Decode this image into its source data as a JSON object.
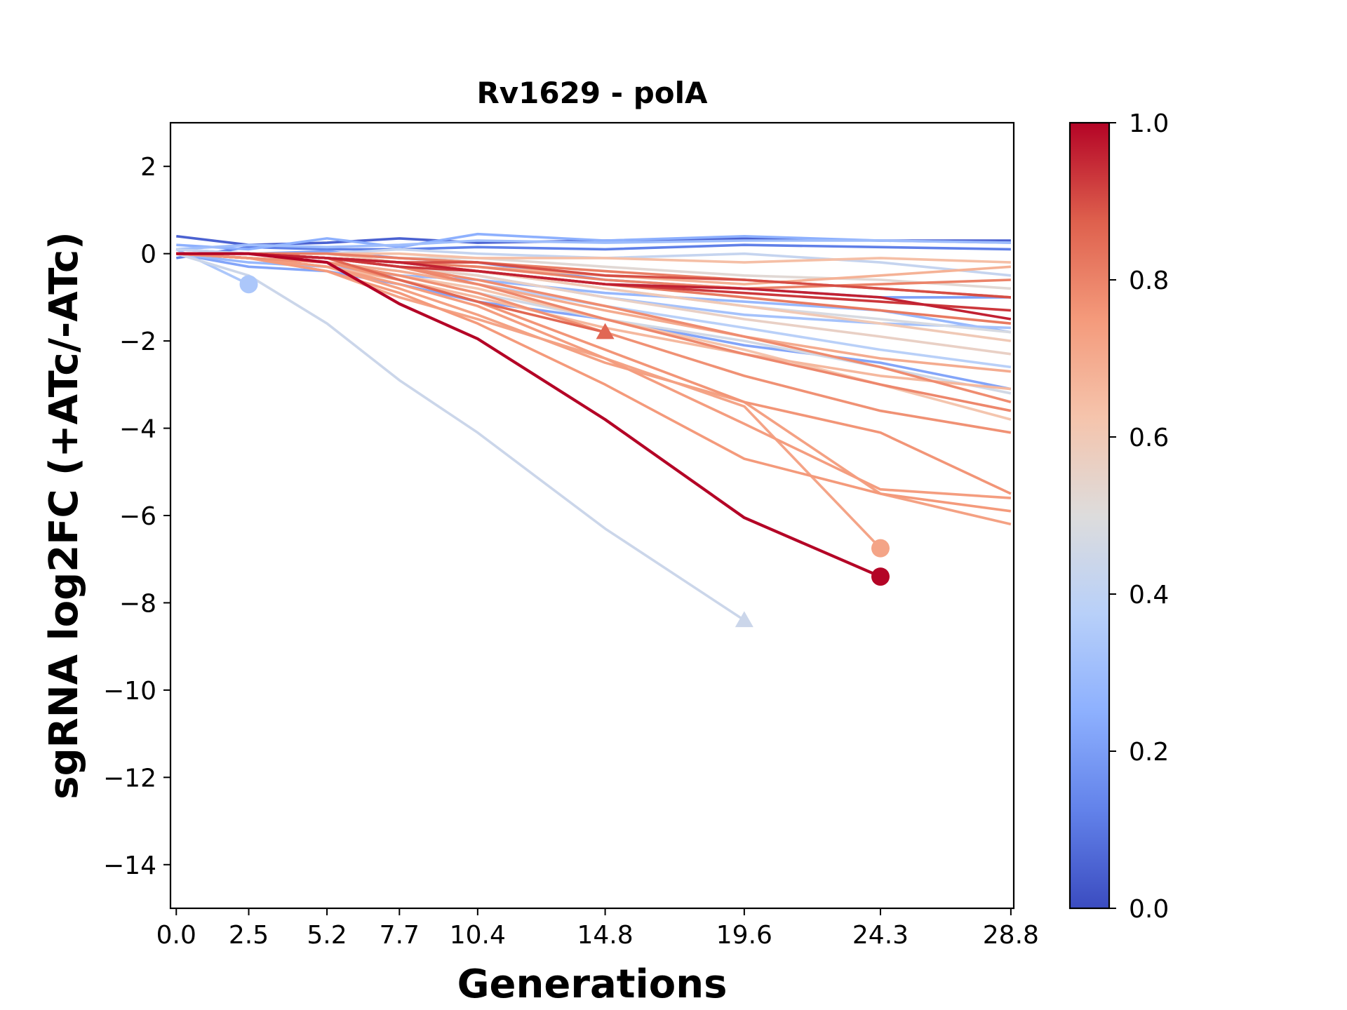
{
  "chart_data": {
    "type": "line",
    "title": "Rv1629 - polA",
    "xlabel": "Generations",
    "ylabel": "sgRNA log2FC (+ATc/-ATc)",
    "x_ticks": [
      0.0,
      2.5,
      5.2,
      7.7,
      10.4,
      14.8,
      19.6,
      24.3,
      28.8
    ],
    "x_tick_labels": [
      "0.0",
      "2.5",
      "5.2",
      "7.7",
      "10.4",
      "14.8",
      "19.6",
      "24.3",
      "28.8"
    ],
    "xlim": [
      -0.2,
      28.9
    ],
    "ylim": [
      -15,
      3
    ],
    "y_ticks": [
      2,
      0,
      -2,
      -4,
      -6,
      -8,
      -10,
      -12,
      -14
    ],
    "y_tick_labels": [
      "2",
      "0",
      "−2",
      "−4",
      "−6",
      "−8",
      "−10",
      "−12",
      "−14"
    ],
    "colorbar": {
      "colormap": "coolwarm",
      "range": [
        0.0,
        1.0
      ],
      "ticks": [
        0.0,
        0.2,
        0.4,
        0.6,
        0.8,
        1.0
      ],
      "tick_labels": [
        "0.0",
        "0.2",
        "0.4",
        "0.6",
        "0.8",
        "1.0"
      ],
      "stops": [
        "#3b4cc0",
        "#6282ea",
        "#8db0fe",
        "#b8d0f9",
        "#dddcdc",
        "#f5c4ac",
        "#f49a7b",
        "#de604d",
        "#b40426"
      ]
    },
    "series": [
      {
        "c": 0.05,
        "x": [
          0,
          2.5,
          5.2,
          7.7,
          10.4,
          14.8,
          19.6,
          24.3,
          28.8
        ],
        "y": [
          0.4,
          0.2,
          0.25,
          0.35,
          0.25,
          0.3,
          0.35,
          0.3,
          0.3
        ]
      },
      {
        "c": 0.12,
        "x": [
          0,
          2.5,
          5.2,
          7.7,
          10.4,
          14.8,
          19.6,
          24.3,
          28.8
        ],
        "y": [
          -0.1,
          0.15,
          0.1,
          0.1,
          0.15,
          0.1,
          0.2,
          0.15,
          0.1
        ]
      },
      {
        "c": 0.2,
        "x": [
          0,
          2.5,
          5.2,
          7.7,
          10.4,
          14.8,
          19.6,
          24.3,
          28.8
        ],
        "y": [
          0.1,
          0.0,
          0.05,
          -0.1,
          -0.2,
          -0.6,
          -0.8,
          -1.0,
          -1.0
        ]
      },
      {
        "c": 0.22,
        "x": [
          0,
          2.5,
          5.2,
          7.7,
          10.4,
          14.8,
          19.6,
          24.3,
          28.8
        ],
        "y": [
          0.0,
          -0.3,
          -0.4,
          -0.7,
          -1.1,
          -1.5,
          -2.1,
          -2.5,
          -3.1
        ]
      },
      {
        "c": 0.25,
        "x": [
          0,
          2.5,
          5.2,
          7.7,
          10.4,
          14.8,
          19.6,
          24.3,
          28.8
        ],
        "y": [
          0.2,
          0.1,
          0.35,
          0.15,
          0.45,
          0.3,
          0.4,
          0.3,
          0.25
        ]
      },
      {
        "c": 0.28,
        "x": [
          0,
          2.5,
          5.2,
          7.7,
          10.4,
          14.8,
          19.6,
          24.3,
          28.8
        ],
        "y": [
          0.0,
          -0.2,
          -0.3,
          -0.5,
          -0.6,
          -0.9,
          -1.1,
          -1.3,
          -1.8
        ]
      },
      {
        "c": 0.3,
        "x": [
          0,
          2.5,
          5.2,
          7.7,
          10.4,
          14.8,
          19.6,
          24.3,
          28.8
        ],
        "y": [
          0.1,
          0.2,
          0.15,
          0.2,
          0.3,
          0.25,
          0.3,
          0.3,
          0.25
        ]
      },
      {
        "c": 0.32,
        "x": [
          0,
          2.5,
          5.2,
          7.7,
          10.4,
          14.8,
          19.6,
          24.3,
          28.8
        ],
        "y": [
          0.0,
          0.0,
          -0.1,
          -0.3,
          -0.5,
          -1.0,
          -1.4,
          -1.6,
          -1.7
        ]
      },
      {
        "c": 0.34,
        "x": [
          0,
          2.5
        ],
        "y": [
          0.1,
          -0.7
        ],
        "end": "circle"
      },
      {
        "c": 0.38,
        "x": [
          0,
          2.5,
          5.2,
          7.7,
          10.4,
          14.8,
          19.6,
          24.3,
          28.8
        ],
        "y": [
          0.0,
          -0.1,
          -0.2,
          -0.4,
          -0.7,
          -1.2,
          -1.7,
          -2.2,
          -2.6
        ]
      },
      {
        "c": 0.42,
        "x": [
          0,
          2.5,
          5.2,
          7.7,
          10.4,
          14.8,
          19.6,
          24.3,
          28.8
        ],
        "y": [
          0.1,
          0.0,
          0.0,
          0.1,
          0.0,
          -0.1,
          0.0,
          -0.2,
          -0.5
        ]
      },
      {
        "c": 0.44,
        "x": [
          0,
          2.5,
          5.2,
          7.7,
          10.4,
          14.8,
          19.6
        ],
        "y": [
          0.0,
          -0.5,
          -1.6,
          -2.9,
          -4.1,
          -6.3,
          -8.4
        ],
        "end": "triangle"
      },
      {
        "c": 0.46,
        "x": [
          0,
          2.5,
          5.2,
          7.7,
          10.4,
          14.8,
          19.6,
          24.3,
          28.8
        ],
        "y": [
          0.0,
          -0.1,
          -0.2,
          -0.5,
          -0.9,
          -1.5,
          -2.0,
          -2.6,
          -3.2
        ]
      },
      {
        "c": 0.48,
        "x": [
          0,
          2.5,
          5.2,
          7.7,
          10.4,
          14.8,
          19.6,
          24.3,
          28.8
        ],
        "y": [
          0.0,
          0.0,
          -0.1,
          -0.2,
          -0.4,
          -0.8,
          -1.2,
          -1.5,
          -1.8
        ]
      },
      {
        "c": 0.52,
        "x": [
          0,
          2.5,
          5.2,
          7.7,
          10.4,
          14.8,
          19.6,
          24.3,
          28.8
        ],
        "y": [
          0.0,
          0.0,
          0.0,
          -0.1,
          -0.1,
          -0.3,
          -0.5,
          -0.6,
          -0.8
        ]
      },
      {
        "c": 0.56,
        "x": [
          0,
          2.5,
          5.2,
          7.7,
          10.4,
          14.8,
          19.6,
          24.3,
          28.8
        ],
        "y": [
          0.0,
          0.0,
          -0.1,
          -0.3,
          -0.5,
          -1.0,
          -1.5,
          -1.9,
          -2.3
        ]
      },
      {
        "c": 0.6,
        "x": [
          0,
          2.5,
          5.2,
          7.7,
          10.4,
          14.8,
          19.6,
          24.3,
          28.8
        ],
        "y": [
          0.0,
          0.0,
          0.0,
          -0.2,
          -0.4,
          -0.8,
          -1.2,
          -1.6,
          -2.0
        ]
      },
      {
        "c": 0.62,
        "x": [
          0,
          2.5,
          5.2,
          7.7,
          10.4,
          14.8,
          19.6,
          24.3,
          28.8
        ],
        "y": [
          0.0,
          -0.1,
          -0.2,
          -0.5,
          -0.8,
          -1.5,
          -2.2,
          -3.0,
          -3.8
        ]
      },
      {
        "c": 0.64,
        "x": [
          0,
          2.5,
          5.2,
          7.7,
          10.4,
          14.8,
          19.6,
          24.3,
          28.8
        ],
        "y": [
          0.0,
          0.0,
          0.0,
          0.0,
          -0.1,
          -0.1,
          -0.2,
          -0.1,
          -0.2
        ]
      },
      {
        "c": 0.66,
        "x": [
          0,
          2.5,
          5.2,
          7.7,
          10.4,
          14.8,
          19.6,
          24.3,
          28.8
        ],
        "y": [
          0.0,
          -0.1,
          -0.3,
          -0.6,
          -1.0,
          -1.7,
          -2.3,
          -2.8,
          -3.1
        ]
      },
      {
        "c": 0.68,
        "x": [
          0,
          2.5,
          5.2,
          7.7,
          10.4,
          14.8,
          19.6,
          24.3,
          28.8
        ],
        "y": [
          0.0,
          0.0,
          -0.1,
          -0.2,
          -0.3,
          -0.5,
          -0.7,
          -0.5,
          -0.3
        ]
      },
      {
        "c": 0.7,
        "x": [
          0,
          2.5,
          5.2,
          7.7,
          10.4,
          14.8,
          19.6,
          24.3,
          28.8
        ],
        "y": [
          0.0,
          -0.1,
          -0.2,
          -0.4,
          -0.7,
          -1.3,
          -1.9,
          -2.4,
          -2.7
        ]
      },
      {
        "c": 0.72,
        "x": [
          0,
          2.5,
          5.2,
          7.7,
          10.4,
          14.8,
          19.6,
          24.3
        ],
        "y": [
          0.0,
          -0.1,
          -0.4,
          -1.0,
          -1.5,
          -2.4,
          -3.5,
          -6.75
        ],
        "end": "circle"
      },
      {
        "c": 0.73,
        "x": [
          0,
          2.5,
          5.2,
          7.7,
          10.4,
          14.8,
          19.6,
          24.3,
          28.8
        ],
        "y": [
          0.0,
          -0.1,
          -0.3,
          -0.8,
          -1.4,
          -2.5,
          -3.4,
          -5.5,
          -6.2
        ]
      },
      {
        "c": 0.74,
        "x": [
          0,
          2.5,
          5.2,
          7.7,
          10.4,
          14.8,
          19.6,
          24.3,
          28.8
        ],
        "y": [
          0.0,
          -0.1,
          -0.3,
          -0.7,
          -1.2,
          -2.4,
          -3.9,
          -5.4,
          -5.6
        ]
      },
      {
        "c": 0.75,
        "x": [
          0,
          2.5,
          5.2,
          7.7,
          10.4,
          14.8,
          19.6,
          24.3,
          28.8
        ],
        "y": [
          0.0,
          -0.1,
          -0.4,
          -0.9,
          -1.6,
          -3.0,
          -4.7,
          -5.5,
          -5.9
        ]
      },
      {
        "c": 0.76,
        "x": [
          0,
          2.5,
          5.2,
          7.7,
          10.4,
          14.8,
          19.6,
          24.3,
          28.8
        ],
        "y": [
          0.0,
          -0.1,
          -0.2,
          -0.6,
          -1.1,
          -2.2,
          -3.4,
          -4.1,
          -5.5
        ]
      },
      {
        "c": 0.77,
        "x": [
          0,
          2.5,
          5.2,
          7.7,
          10.4,
          14.8,
          19.6,
          24.3,
          28.8
        ],
        "y": [
          0.0,
          -0.1,
          -0.2,
          -0.5,
          -0.9,
          -1.8,
          -2.8,
          -3.6,
          -4.1
        ]
      },
      {
        "c": 0.78,
        "x": [
          0,
          2.5,
          5.2,
          7.7,
          10.4,
          14.8,
          19.6,
          24.3,
          28.8
        ],
        "y": [
          0.0,
          0.0,
          -0.1,
          -0.3,
          -0.6,
          -1.2,
          -1.9,
          -2.6,
          -3.4
        ]
      },
      {
        "c": 0.79,
        "x": [
          0,
          2.5,
          5.2,
          7.7,
          10.4,
          14.8,
          19.6,
          24.3,
          28.8
        ],
        "y": [
          0.0,
          0.0,
          -0.1,
          -0.3,
          -0.7,
          -1.5,
          -2.3,
          -3.0,
          -3.6
        ]
      },
      {
        "c": 0.8,
        "x": [
          0,
          2.5,
          5.2,
          7.7,
          10.4,
          14.8,
          19.6,
          24.3,
          28.8
        ],
        "y": [
          0.0,
          0.0,
          -0.1,
          -0.2,
          -0.3,
          -0.6,
          -0.8,
          -0.7,
          -0.6
        ]
      },
      {
        "c": 0.81,
        "x": [
          0,
          2.5,
          5.2,
          7.7,
          10.4,
          14.8,
          19.6,
          24.3,
          28.8
        ],
        "y": [
          0.0,
          0.0,
          0.0,
          -0.1,
          -0.2,
          -0.4,
          -0.6,
          -0.8,
          -1.0
        ]
      },
      {
        "c": 0.82,
        "x": [
          0,
          2.5,
          5.2,
          7.7,
          10.4,
          14.8,
          19.6,
          24.3,
          28.8
        ],
        "y": [
          0.0,
          0.0,
          -0.1,
          -0.2,
          -0.4,
          -0.7,
          -1.0,
          -1.3,
          -1.6
        ]
      },
      {
        "c": 0.86,
        "x": [
          0,
          2.5,
          5.2,
          7.7,
          10.4,
          14.8
        ],
        "y": [
          0.0,
          0.0,
          -0.1,
          -0.6,
          -1.1,
          -1.8
        ],
        "end": "triangle"
      },
      {
        "c": 0.9,
        "x": [
          0,
          2.5,
          5.2,
          7.7,
          10.4,
          14.8,
          19.6,
          24.3,
          28.8
        ],
        "y": [
          0.0,
          0.0,
          -0.1,
          -0.2,
          -0.2,
          -0.5,
          -0.6,
          -0.8,
          -1.0
        ]
      },
      {
        "c": 0.93,
        "x": [
          0,
          2.5,
          5.2,
          7.7,
          10.4,
          14.8,
          19.6,
          24.3,
          28.8
        ],
        "y": [
          0.0,
          0.0,
          -0.1,
          -0.3,
          -0.4,
          -0.7,
          -0.9,
          -1.1,
          -1.3
        ]
      },
      {
        "c": 0.96,
        "x": [
          0,
          2.5,
          5.2,
          7.7,
          10.4,
          14.8,
          19.6,
          24.3,
          28.8
        ],
        "y": [
          0.0,
          0.0,
          -0.1,
          -0.2,
          -0.4,
          -0.7,
          -0.8,
          -1.0,
          -1.5
        ]
      },
      {
        "c": 1.0,
        "x": [
          0,
          2.5,
          5.2,
          7.7,
          10.4,
          14.8,
          19.6,
          24.3
        ],
        "y": [
          0.0,
          0.0,
          -0.2,
          -1.15,
          -1.95,
          -3.8,
          -6.05,
          -7.4
        ],
        "end": "circle"
      }
    ]
  }
}
